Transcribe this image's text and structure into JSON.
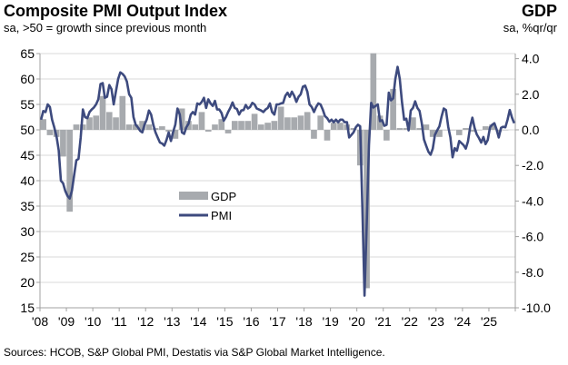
{
  "header": {
    "title": "Composite PMI Output Index",
    "subtitle": "sa, >50 = growth since previous month",
    "right_title": "GDP",
    "right_subtitle": "sa, %qr/qr"
  },
  "footer": {
    "source": "Sources: HCOB, S&P Global PMI, Destatis via S&P Global Market Intelligence."
  },
  "chart_data": {
    "type": "bar+line",
    "legend": {
      "placement": "center-left",
      "entries": [
        "GDP",
        "PMI"
      ]
    },
    "grid": "horizontal",
    "colors": {
      "gdp": "#a7aaae",
      "pmi": "#3d4a7e",
      "grid": "#d9d9d9",
      "axis": "#a0a0a0"
    },
    "x_ticks": [
      "'08",
      "'09",
      "'10",
      "'11",
      "'12",
      "'13",
      "'14",
      "'15",
      "'16",
      "'17",
      "'18",
      "'19",
      "'20",
      "'21",
      "'22",
      "'23",
      "'24",
      "'25"
    ],
    "y_left": {
      "range": [
        15,
        65
      ],
      "ticks": [
        "15",
        "20",
        "25",
        "30",
        "35",
        "40",
        "45",
        "50",
        "55",
        "60",
        "65"
      ]
    },
    "y_right": {
      "range": [
        -10,
        4
      ],
      "ticks": [
        "-10.0",
        "-8.0",
        "-6.0",
        "-4.0",
        "-2.0",
        "0.0",
        "2.0",
        "4.0"
      ]
    },
    "series": [
      {
        "name": "GDP",
        "axis": "right",
        "frequency": "quarterly",
        "start": "2008-Q1",
        "values": [
          0.6,
          -0.3,
          -0.4,
          -1.5,
          -4.6,
          0.3,
          0.3,
          0.7,
          0.8,
          1.9,
          1.0,
          0.7,
          1.9,
          0.3,
          0.3,
          0.5,
          0.3,
          0.1,
          0.2,
          -0.1,
          -0.5,
          1.2,
          0.5,
          0.3,
          1.0,
          -0.1,
          0.3,
          0.6,
          -0.2,
          0.5,
          0.5,
          0.5,
          0.9,
          0.3,
          0.4,
          0.5,
          1.3,
          0.7,
          0.7,
          0.8,
          1.0,
          -0.5,
          0.8,
          -0.6,
          0.4,
          0.4,
          0.3,
          0.1,
          -2.0,
          -8.9,
          4.3,
          0.8,
          -0.6,
          2.3,
          0.1,
          0.1,
          0.7,
          0.1,
          0.3,
          -0.4,
          -0.4,
          0.0,
          0.0,
          -0.3,
          0.1,
          -0.1,
          0.0,
          0.2,
          0.3,
          -0.1,
          0.0
        ]
      },
      {
        "name": "PMI",
        "axis": "left",
        "frequency": "monthly",
        "start": "2008-01",
        "values": [
          52,
          53.7,
          53.5,
          55,
          54.5,
          52,
          50.5,
          48.7,
          46,
          40,
          39.5,
          38,
          37,
          36.5,
          38,
          41,
          44,
          44.3,
          48.5,
          54,
          52.5,
          52.3,
          53.5,
          54,
          54.4,
          55,
          56,
          59,
          59.2,
          56.3,
          56.5,
          58.8,
          58,
          55,
          57.5,
          60,
          61.3,
          61,
          60.5,
          59.5,
          57,
          56.3,
          52.5,
          51,
          50.5,
          49.8,
          49.5,
          51,
          52,
          53.8,
          53,
          51,
          49.5,
          48.5,
          47.5,
          47.3,
          46.9,
          48,
          49.5,
          47.8,
          49.6,
          51,
          54.2,
          53,
          49.5,
          49.2,
          50.5,
          51.2,
          53,
          53.5,
          53,
          55.2,
          55,
          55.5,
          56.3,
          54.3,
          56,
          55.2,
          54.7,
          55.7,
          54,
          54,
          53.3,
          51.8,
          52.5,
          53.5,
          54.3,
          55.4,
          54.3,
          54.1,
          53,
          53.8,
          53.9,
          54.9,
          54.2,
          54.5,
          55.3,
          55,
          54.2,
          54,
          53.8,
          53.5,
          54,
          54.3,
          55.2,
          53.5,
          53,
          55,
          55,
          55.2,
          55.3,
          56.7,
          57.3,
          56.5,
          57.5,
          56.7,
          55.5,
          56.5,
          57,
          58.5,
          58.7,
          57.5,
          55,
          54.5,
          53.5,
          54.5,
          55.2,
          55,
          54,
          52.7,
          52.3,
          51.6,
          52,
          51.5,
          52,
          51.5,
          52,
          52,
          51.5,
          51.5,
          48.5,
          49,
          49.5,
          50.5,
          51,
          50.7,
          35,
          17.4,
          32,
          47,
          55.3,
          54.4,
          54.7,
          55,
          51.7,
          51.9,
          50.8,
          51,
          57.3,
          55.8,
          56.2,
          60,
          62.4,
          60,
          55.5,
          52,
          52.2,
          49.9,
          53.8,
          54.3,
          55.6,
          54.3,
          53.7,
          51.3,
          48.1,
          46.9,
          45.7,
          45.1,
          46.3,
          49,
          49.9,
          50.7,
          52.6,
          54.2,
          53.9,
          50.6,
          48.5,
          44.6,
          46.4,
          45.9,
          47.8,
          47.4,
          47,
          46.3,
          47.7,
          50.6,
          52.4,
          50.4,
          49.1,
          48.4,
          47.5,
          48.6,
          47.2,
          48,
          50.5,
          51,
          51.3,
          50.1,
          48.5,
          50.4,
          50.6,
          50.5,
          52,
          53.9,
          52.4,
          51.3
        ]
      }
    ]
  }
}
